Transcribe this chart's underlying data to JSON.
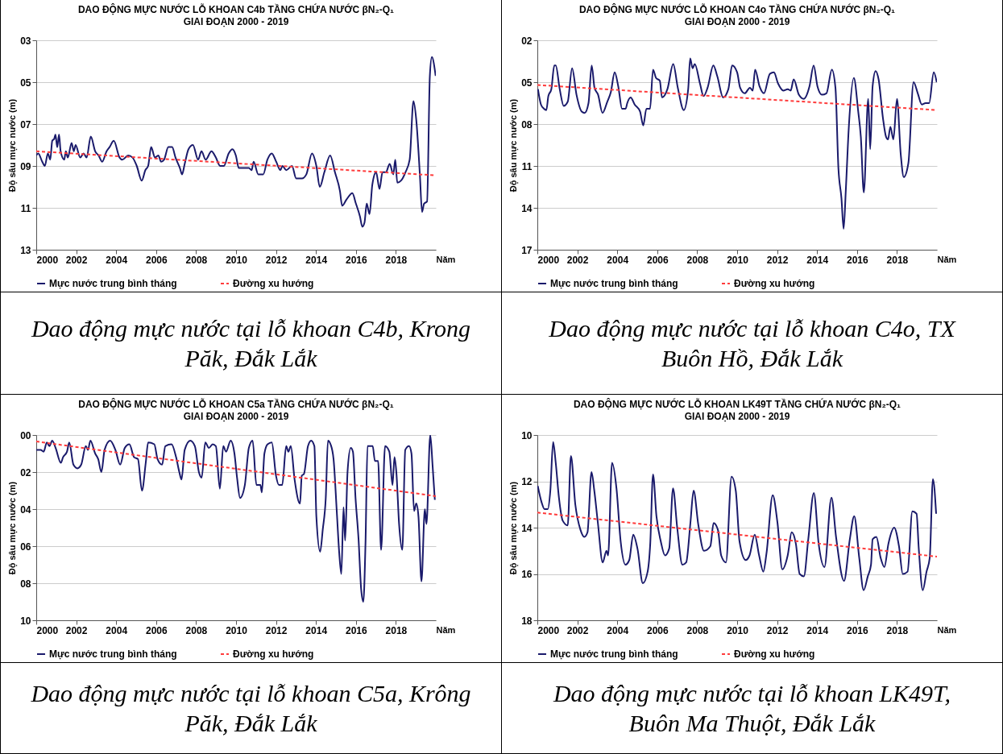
{
  "chart_data": [
    {
      "type": "line",
      "title": "DAO ĐỘNG MỰC NƯỚC LỖ KHOAN C4b TẦNG CHỨA NƯỚC βN₂-Q₁",
      "subtitle": "GIAI ĐOẠN 2000 - 2019",
      "xlabel": "Năm",
      "ylabel": "Độ sâu mực nước (m)",
      "annotations": [
        "Dao động mực nước tại lỗ khoan C4b, Krong Păk, Đắk Lắk"
      ],
      "xlim": [
        2000,
        2020
      ],
      "xticks": [
        2000,
        2002,
        2004,
        2006,
        2008,
        2010,
        2012,
        2014,
        2016,
        2018
      ],
      "ylim": [
        13,
        3
      ],
      "yticks": [
        {
          "value": 3,
          "label": "03"
        },
        {
          "value": 5,
          "label": "05"
        },
        {
          "value": 7,
          "label": "07"
        },
        {
          "value": 9,
          "label": "09"
        },
        11,
        13
      ],
      "grid": "y",
      "legend": "bottom",
      "series": [
        {
          "name": "Mực nước trung bình tháng",
          "color": "#1a1a6b",
          "line_style": "solid",
          "x": [
            2000.0,
            2000.1,
            2000.3,
            2000.43,
            2000.58,
            2000.7,
            2000.8,
            2000.9,
            2000.96,
            2001.05,
            2001.14,
            2001.22,
            2001.4,
            2001.48,
            2001.58,
            2001.77,
            2001.88,
            2001.97,
            2002.2,
            2002.37,
            2002.52,
            2002.73,
            2002.95,
            2003.12,
            2003.3,
            2003.52,
            2003.67,
            2003.88,
            2004.17,
            2004.31,
            2004.6,
            2004.82,
            2005.03,
            2005.28,
            2005.46,
            2005.6,
            2005.75,
            2005.94,
            2006.11,
            2006.25,
            2006.4,
            2006.61,
            2006.8,
            2006.97,
            2007.19,
            2007.3,
            2007.43,
            2007.62,
            2007.84,
            2008.1,
            2008.27,
            2008.48,
            2008.77,
            2008.99,
            2009.2,
            2009.39,
            2009.63,
            2009.82,
            2009.99,
            2010.14,
            2010.42,
            2010.64,
            2010.78,
            2010.88,
            2011.11,
            2011.36,
            2011.57,
            2011.79,
            2012.01,
            2012.22,
            2012.32,
            2012.51,
            2012.8,
            2013.01,
            2013.3,
            2013.52,
            2013.8,
            2014.02,
            2014.19,
            2014.42,
            2014.71,
            2014.95,
            2015.2,
            2015.31,
            2015.53,
            2015.82,
            2016.0,
            2016.2,
            2016.32,
            2016.43,
            2016.54,
            2016.68,
            2016.82,
            2017.01,
            2017.18,
            2017.33,
            2017.5,
            2017.69,
            2017.87,
            2017.97,
            2018.07,
            2018.26,
            2018.48,
            2018.69,
            2018.88,
            2019.02,
            2019.2,
            2019.31,
            2019.41,
            2019.56,
            2019.7,
            2019.8,
            2019.99
          ],
          "values": [
            8.5,
            8.4,
            8.8,
            9.0,
            8.4,
            8.7,
            7.8,
            7.7,
            7.5,
            8.1,
            7.5,
            8.3,
            8.7,
            8.3,
            8.6,
            7.9,
            8.3,
            8.0,
            8.6,
            8.4,
            8.6,
            7.6,
            8.3,
            8.5,
            8.8,
            8.3,
            8.1,
            7.8,
            8.6,
            8.7,
            8.5,
            8.6,
            9.0,
            9.7,
            9.2,
            9.0,
            8.1,
            8.6,
            8.5,
            8.8,
            8.7,
            8.1,
            8.1,
            8.6,
            9.1,
            9.4,
            8.9,
            8.2,
            8.0,
            8.7,
            8.3,
            8.7,
            8.3,
            8.6,
            9.0,
            9.0,
            8.4,
            8.2,
            8.5,
            9.1,
            9.1,
            9.1,
            9.2,
            8.8,
            9.4,
            9.4,
            8.7,
            8.4,
            8.8,
            9.2,
            9.0,
            9.2,
            9.0,
            9.6,
            9.6,
            9.4,
            8.4,
            9.0,
            10.0,
            9.3,
            8.5,
            9.3,
            10.2,
            10.9,
            10.6,
            10.3,
            10.8,
            11.4,
            11.9,
            11.7,
            10.8,
            11.3,
            9.9,
            9.3,
            10.1,
            9.3,
            9.3,
            8.9,
            9.4,
            8.7,
            9.8,
            9.7,
            9.3,
            8.7,
            5.9,
            6.8,
            9.4,
            11.2,
            10.8,
            10.7,
            4.7,
            3.8,
            4.7
          ]
        },
        {
          "name": "Đường xu hướng",
          "color": "#ff3b3b",
          "line_style": "dashed",
          "x": [
            2000,
            2020
          ],
          "values": [
            8.3,
            9.45
          ]
        }
      ]
    },
    {
      "type": "line",
      "title": "DAO ĐỘNG MỰC NƯỚC LỖ KHOAN C4o TẦNG CHỨA NƯỚC βN₂-Q₁",
      "subtitle": "GIAI ĐOẠN 2000 - 2019",
      "xlabel": "Năm",
      "ylabel": "Độ sâu mực nước (m)",
      "annotations": [
        "Dao động mực nước tại lỗ khoan C4o, TX Buôn Hồ, Đắk Lắk"
      ],
      "xlim": [
        2000,
        2020
      ],
      "xticks": [
        2000,
        2002,
        2004,
        2006,
        2008,
        2010,
        2012,
        2014,
        2016,
        2018
      ],
      "ylim": [
        17,
        2
      ],
      "yticks": [
        {
          "value": 2,
          "label": "02"
        },
        {
          "value": 5,
          "label": "05"
        },
        {
          "value": 8,
          "label": "08"
        },
        11,
        14,
        17
      ],
      "grid": "y",
      "legend": "bottom",
      "series": [
        {
          "name": "Mực nước trung bình tháng",
          "color": "#1a1a6b",
          "line_style": "solid",
          "x": [
            2000.03,
            2000.18,
            2000.33,
            2000.45,
            2000.55,
            2000.7,
            2000.85,
            2000.92,
            2001.12,
            2001.32,
            2001.52,
            2001.74,
            2001.96,
            2002.22,
            2002.37,
            2002.56,
            2002.72,
            2002.86,
            2003.04,
            2003.26,
            2003.5,
            2003.68,
            2003.87,
            2004.05,
            2004.24,
            2004.42,
            2004.5,
            2004.67,
            2004.87,
            2005.14,
            2005.3,
            2005.46,
            2005.64,
            2005.79,
            2005.94,
            2006.13,
            2006.24,
            2006.51,
            2006.8,
            2007.03,
            2007.33,
            2007.55,
            2007.65,
            2007.77,
            2007.88,
            2008.14,
            2008.32,
            2008.52,
            2008.81,
            2009.01,
            2009.3,
            2009.56,
            2009.75,
            2010.0,
            2010.15,
            2010.38,
            2010.64,
            2010.78,
            2010.9,
            2011.12,
            2011.34,
            2011.64,
            2011.84,
            2012.05,
            2012.31,
            2012.53,
            2012.68,
            2012.83,
            2013.09,
            2013.33,
            2013.62,
            2013.83,
            2014.02,
            2014.25,
            2014.47,
            2014.74,
            2014.92,
            2015.07,
            2015.22,
            2015.33,
            2015.44,
            2015.59,
            2015.84,
            2016.06,
            2016.19,
            2016.34,
            2016.56,
            2016.66,
            2016.78,
            2016.93,
            2017.08,
            2017.3,
            2017.45,
            2017.55,
            2017.67,
            2017.82,
            2018.0,
            2018.19,
            2018.34,
            2018.57,
            2018.83,
            2019.04,
            2019.24,
            2019.43,
            2019.61,
            2019.84,
            2019.99
          ],
          "values": [
            5.5,
            6.6,
            6.9,
            7.0,
            6.0,
            5.5,
            3.8,
            3.8,
            5.5,
            6.7,
            6.4,
            4.0,
            5.9,
            7.1,
            7.2,
            6.5,
            3.8,
            5.4,
            5.9,
            7.2,
            6.4,
            5.7,
            4.3,
            5.3,
            6.9,
            6.9,
            6.5,
            6.1,
            6.6,
            7.1,
            8.1,
            6.9,
            6.9,
            4.1,
            4.7,
            4.9,
            6.1,
            5.5,
            3.7,
            5.4,
            7.0,
            5.5,
            3.3,
            4.0,
            3.7,
            5.1,
            6.0,
            5.4,
            3.8,
            4.6,
            6.1,
            5.5,
            3.8,
            4.3,
            5.4,
            5.8,
            5.4,
            5.6,
            4.1,
            5.3,
            5.8,
            4.4,
            4.3,
            5.1,
            5.6,
            5.5,
            5.6,
            4.8,
            5.9,
            6.2,
            5.3,
            3.8,
            5.3,
            5.9,
            5.8,
            4.1,
            5.4,
            11.2,
            13.3,
            15.5,
            12.7,
            8.2,
            4.7,
            7.1,
            8.9,
            12.9,
            6.2,
            9.8,
            5.3,
            4.2,
            4.8,
            7.6,
            8.9,
            9.1,
            8.2,
            9.1,
            6.2,
            10.2,
            11.8,
            10.8,
            5.0,
            5.8,
            6.6,
            6.5,
            6.5,
            4.3,
            5.0
          ]
        },
        {
          "name": "Đường xu hướng",
          "color": "#ff3b3b",
          "line_style": "dashed",
          "x": [
            2000,
            2020
          ],
          "values": [
            5.2,
            7.0
          ]
        }
      ]
    },
    {
      "type": "line",
      "title": "DAO ĐỘNG MỰC NƯỚC LỖ KHOAN C5a TẦNG CHỨA NƯỚC βN₂-Q₁",
      "subtitle": "GIAI ĐOẠN 2000 - 2019",
      "xlabel": "Năm",
      "ylabel": "Độ sâu mực nước (m)",
      "annotations": [
        "Dao động mực nước tại lỗ khoan C5a, Krông Păk, Đắk Lắk"
      ],
      "xlim": [
        2000,
        2020
      ],
      "xticks": [
        2000,
        2002,
        2004,
        2006,
        2008,
        2010,
        2012,
        2014,
        2016,
        2018
      ],
      "ylim": [
        10,
        0
      ],
      "yticks": [
        {
          "value": 0,
          "label": "00"
        },
        {
          "value": 2,
          "label": "02"
        },
        {
          "value": 4,
          "label": "04"
        },
        {
          "value": 6,
          "label": "06"
        },
        {
          "value": 8,
          "label": "08"
        },
        10
      ],
      "grid": "y",
      "legend": "bottom",
      "series": [
        {
          "name": "Mực nước trung bình tháng",
          "color": "#1a1a6b",
          "line_style": "solid",
          "x": [
            2000.0,
            2000.22,
            2000.37,
            2000.53,
            2000.66,
            2000.8,
            2000.97,
            2001.23,
            2001.34,
            2001.54,
            2001.65,
            2001.86,
            2002.06,
            2002.25,
            2002.48,
            2002.59,
            2002.71,
            2002.95,
            2003.1,
            2003.26,
            2003.42,
            2003.7,
            2003.96,
            2004.2,
            2004.43,
            2004.66,
            2004.9,
            2005.09,
            2005.29,
            2005.48,
            2005.6,
            2005.91,
            2006.07,
            2006.3,
            2006.46,
            2006.77,
            2007.0,
            2007.16,
            2007.27,
            2007.43,
            2007.71,
            2007.94,
            2008.14,
            2008.28,
            2008.46,
            2008.64,
            2008.83,
            2008.99,
            2009.19,
            2009.36,
            2009.5,
            2009.73,
            2009.92,
            2010.05,
            2010.2,
            2010.44,
            2010.64,
            2010.83,
            2011.02,
            2011.22,
            2011.29,
            2011.42,
            2011.58,
            2011.79,
            2012.0,
            2012.15,
            2012.31,
            2012.51,
            2012.62,
            2012.74,
            2012.93,
            2013.2,
            2013.29,
            2013.4,
            2013.6,
            2013.76,
            2013.92,
            2014.02,
            2014.21,
            2014.34,
            2014.49,
            2014.6,
            2014.73,
            2014.88,
            2015.04,
            2015.16,
            2015.27,
            2015.38,
            2015.46,
            2015.58,
            2015.74,
            2015.85,
            2015.98,
            2016.13,
            2016.26,
            2016.37,
            2016.48,
            2016.58,
            2016.76,
            2016.84,
            2016.95,
            2017.11,
            2017.26,
            2017.46,
            2017.67,
            2017.83,
            2017.93,
            2018.03,
            2018.16,
            2018.32,
            2018.47,
            2018.66,
            2018.78,
            2018.91,
            2019.02,
            2019.13,
            2019.28,
            2019.45,
            2019.53,
            2019.72,
            2019.84,
            2019.95
          ],
          "values": [
            0.8,
            0.8,
            0.9,
            0.4,
            0.6,
            0.3,
            0.7,
            1.5,
            1.2,
            0.9,
            0.4,
            1.6,
            1.8,
            1.6,
            0.6,
            0.8,
            0.3,
            1.0,
            1.3,
            2.0,
            0.8,
            0.3,
            0.8,
            1.6,
            0.7,
            0.5,
            1.2,
            1.3,
            3.0,
            1.5,
            0.4,
            0.5,
            1.3,
            1.6,
            0.6,
            0.5,
            1.2,
            2.0,
            2.4,
            0.8,
            0.3,
            0.6,
            2.0,
            2.3,
            0.4,
            0.7,
            0.5,
            0.6,
            2.9,
            0.6,
            0.9,
            0.3,
            1.0,
            2.3,
            3.4,
            2.7,
            0.7,
            0.3,
            2.7,
            2.7,
            3.1,
            1.0,
            0.5,
            0.4,
            2.2,
            2.7,
            2.7,
            0.6,
            0.9,
            0.6,
            2.4,
            3.7,
            2.2,
            2.1,
            0.6,
            0.3,
            0.6,
            4.4,
            6.3,
            5.1,
            3.4,
            0.3,
            0.5,
            1.3,
            4.1,
            6.3,
            7.5,
            3.9,
            5.7,
            2.0,
            0.7,
            0.9,
            3.4,
            5.6,
            8.3,
            9.0,
            5.8,
            0.6,
            0.6,
            0.6,
            1.4,
            1.4,
            6.2,
            0.6,
            0.9,
            2.7,
            1.2,
            2.1,
            4.8,
            6.2,
            0.8,
            0.6,
            1.0,
            4.1,
            3.7,
            4.4,
            7.9,
            4.0,
            4.8,
            0.0,
            1.7,
            3.5
          ]
        },
        {
          "name": "Đường xu hướng",
          "color": "#ff3b3b",
          "line_style": "dashed",
          "x": [
            2000,
            2020
          ],
          "values": [
            0.35,
            3.3
          ]
        }
      ]
    },
    {
      "type": "line",
      "title": "DAO ĐỘNG MỰC NƯỚC LỖ KHOAN LK49T TẦNG CHỨA NƯỚC βN₂-Q₁",
      "subtitle": "GIAI ĐOẠN 2000 - 2019",
      "xlabel": "Năm",
      "ylabel": "Độ sâu mực nước (m)",
      "annotations": [
        "Dao động mực nước tại lỗ khoan LK49T, Buôn Ma Thuột, Đắk Lắk"
      ],
      "xlim": [
        2000,
        2020
      ],
      "xticks": [
        2000,
        2002,
        2004,
        2006,
        2008,
        2010,
        2012,
        2014,
        2016,
        2018
      ],
      "ylim": [
        18,
        10
      ],
      "yticks": [
        10,
        12,
        14,
        16,
        18
      ],
      "grid": "y",
      "legend": "bottom",
      "series": [
        {
          "name": "Mực nước trung bình tháng",
          "color": "#1a1a6b",
          "line_style": "solid",
          "x": [
            2000.02,
            2000.21,
            2000.36,
            2000.52,
            2000.65,
            2000.79,
            2000.92,
            2001.08,
            2001.27,
            2001.52,
            2001.68,
            2001.9,
            2002.16,
            2002.35,
            2002.51,
            2002.71,
            2002.85,
            2003.03,
            2003.27,
            2003.46,
            2003.54,
            2003.74,
            2003.96,
            2004.17,
            2004.41,
            2004.6,
            2004.8,
            2005.01,
            2005.28,
            2005.52,
            2005.65,
            2005.79,
            2005.96,
            2006.18,
            2006.39,
            2006.6,
            2006.79,
            2007.0,
            2007.26,
            2007.45,
            2007.66,
            2007.82,
            2008.06,
            2008.34,
            2008.66,
            2008.82,
            2009.04,
            2009.2,
            2009.44,
            2009.72,
            2009.93,
            2010.12,
            2010.43,
            2010.62,
            2010.88,
            2011.1,
            2011.31,
            2011.47,
            2011.78,
            2012.02,
            2012.26,
            2012.53,
            2012.73,
            2012.94,
            2013.13,
            2013.34,
            2013.56,
            2013.84,
            2014.08,
            2014.37,
            2014.72,
            2014.95,
            2015.35,
            2015.64,
            2015.86,
            2016.11,
            2016.33,
            2016.54,
            2016.7,
            2016.78,
            2016.97,
            2017.18,
            2017.37,
            2017.57,
            2017.86,
            2018.1,
            2018.29,
            2018.53,
            2018.77,
            2018.98,
            2019.09,
            2019.29,
            2019.48,
            2019.64,
            2019.8,
            2019.96
          ],
          "values": [
            12.2,
            12.9,
            13.2,
            13.2,
            12.4,
            10.3,
            11.2,
            12.7,
            13.7,
            13.9,
            10.9,
            13.0,
            14.1,
            14.4,
            14.2,
            11.6,
            12.4,
            13.8,
            15.5,
            15.0,
            15.2,
            11.2,
            12.3,
            14.6,
            15.6,
            15.4,
            14.3,
            14.9,
            16.4,
            15.9,
            14.7,
            11.7,
            13.5,
            14.6,
            15.2,
            14.9,
            12.3,
            14.0,
            15.6,
            15.5,
            13.8,
            12.4,
            13.9,
            15.0,
            14.8,
            13.8,
            14.1,
            15.2,
            15.5,
            11.8,
            12.4,
            14.6,
            15.4,
            15.2,
            14.3,
            15.2,
            15.9,
            15.1,
            12.6,
            13.8,
            15.8,
            15.2,
            14.2,
            14.7,
            16.0,
            16.1,
            14.5,
            12.5,
            14.7,
            15.7,
            12.7,
            14.4,
            16.3,
            14.5,
            13.5,
            15.3,
            16.7,
            16.1,
            15.6,
            14.5,
            14.4,
            15.3,
            15.7,
            14.7,
            14.0,
            14.8,
            16.0,
            15.9,
            13.3,
            13.4,
            14.9,
            16.7,
            15.9,
            15.3,
            11.9,
            13.4
          ]
        },
        {
          "name": "Đường xu hướng",
          "color": "#ff3b3b",
          "line_style": "dashed",
          "x": [
            2000,
            2020
          ],
          "values": [
            13.35,
            15.25
          ]
        }
      ]
    }
  ]
}
